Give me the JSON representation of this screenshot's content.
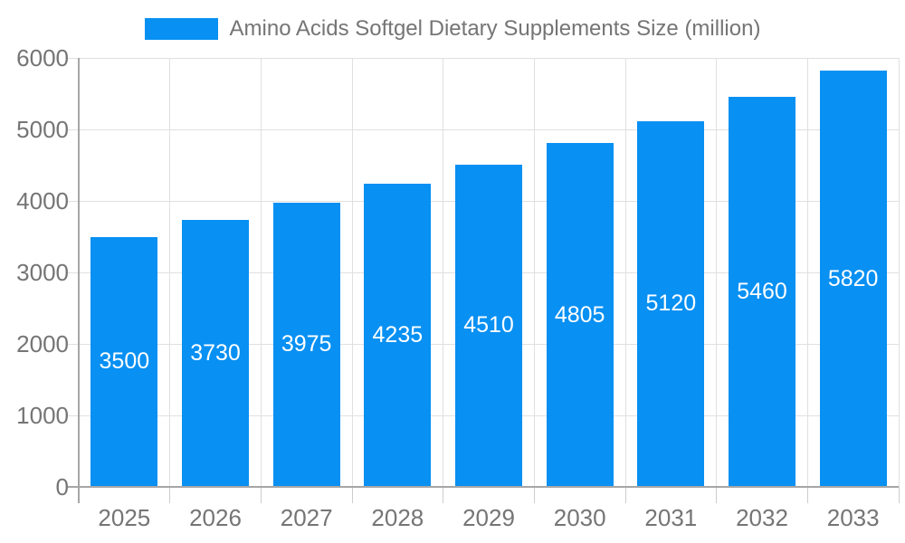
{
  "legend": {
    "position": "top"
  },
  "chart_data": {
    "type": "bar",
    "title": "Amino Acids Softgel Dietary Supplements Size (million)",
    "categories": [
      "2025",
      "2026",
      "2027",
      "2028",
      "2029",
      "2030",
      "2031",
      "2032",
      "2033"
    ],
    "series": [
      {
        "name": "Amino Acids Softgel Dietary Supplements Size (million)",
        "values": [
          3500,
          3730,
          3975,
          4235,
          4510,
          4805,
          5120,
          5460,
          5820
        ]
      }
    ],
    "value_labels": [
      "3500",
      "3730",
      "3975",
      "4235",
      "4510",
      "4805",
      "5120",
      "5460",
      "5820"
    ],
    "xlabel": "",
    "ylabel": "",
    "ylim": [
      0,
      6000
    ],
    "y_ticks": [
      0,
      1000,
      2000,
      3000,
      4000,
      5000,
      6000
    ],
    "y_tick_labels": [
      "0",
      "1000",
      "2000",
      "3000",
      "4000",
      "5000",
      "6000"
    ],
    "grid": true,
    "legend_position": "top"
  },
  "colors": {
    "background": "#ffffff",
    "bar": "#0890f3",
    "gridline": "#e0e0e0",
    "axis_line": "#a6a6a6",
    "tick_mark": "#cccccc",
    "tick_label_text": "#757575",
    "title_text": "#757575",
    "value_label_text": "#ffffff"
  }
}
